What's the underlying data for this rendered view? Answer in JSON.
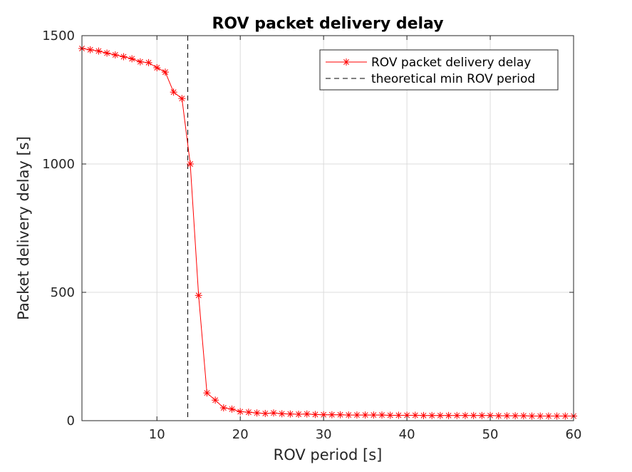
{
  "chart_data": {
    "type": "line",
    "title": "ROV packet delivery delay",
    "xlabel": "ROV period [s]",
    "ylabel": "Packet delivery delay [s]",
    "xlim": [
      1,
      60
    ],
    "ylim": [
      0,
      1500
    ],
    "xticks": [
      10,
      20,
      30,
      40,
      50,
      60
    ],
    "yticks": [
      0,
      500,
      1000,
      1500
    ],
    "grid": true,
    "legend_position": "top-right",
    "series": [
      {
        "name": "ROV packet delivery delay",
        "color": "#ff0000",
        "marker": "asterisk",
        "line_style": "solid",
        "x": [
          1,
          2,
          3,
          4,
          5,
          6,
          7,
          8,
          9,
          10,
          11,
          12,
          13,
          14,
          15,
          16,
          17,
          18,
          19,
          20,
          21,
          22,
          23,
          24,
          25,
          26,
          27,
          28,
          29,
          30,
          31,
          32,
          33,
          34,
          35,
          36,
          37,
          38,
          39,
          40,
          41,
          42,
          43,
          44,
          45,
          46,
          47,
          48,
          49,
          50,
          51,
          52,
          53,
          54,
          55,
          56,
          57,
          58,
          59,
          60
        ],
        "y": [
          1450,
          1445,
          1440,
          1432,
          1425,
          1418,
          1410,
          1398,
          1395,
          1375,
          1358,
          1280,
          1255,
          1000,
          488,
          108,
          80,
          50,
          45,
          35,
          33,
          30,
          28,
          30,
          27,
          26,
          25,
          26,
          24,
          23,
          23,
          23,
          22,
          22,
          22,
          22,
          22,
          21,
          21,
          21,
          21,
          20,
          20,
          20,
          20,
          20,
          20,
          20,
          20,
          20,
          19,
          19,
          19,
          19,
          18,
          18,
          18,
          18,
          18,
          18
        ]
      },
      {
        "name": "theoretical min ROV period",
        "color": "#000000",
        "line_style": "dashed",
        "x_value": 13.7
      }
    ]
  }
}
